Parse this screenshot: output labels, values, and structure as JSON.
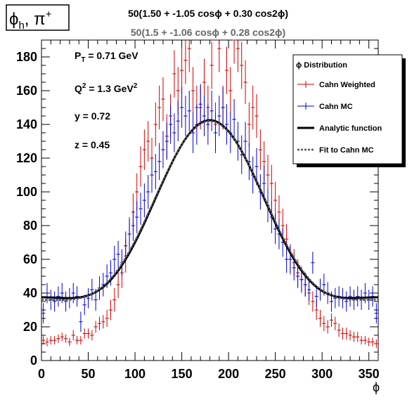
{
  "title_box": {
    "text": "ϕh, π+",
    "main": "ϕ",
    "sub": "h",
    "rest": ", π",
    "sup": "+"
  },
  "formula_1": "50(1.50 + -1.05 cosϕ + 0.30 cos2ϕ)",
  "formula_2": "50(1.5 + -1.06 cosϕ + 0.28 cos2ϕ)",
  "kinematics": [
    {
      "text": "PT = 0.71 GeV",
      "base": "P",
      "sub": "T",
      "sup": "",
      "rest": " = 0.71 GeV"
    },
    {
      "text": "Q2 = 1.3 GeV2",
      "base": "Q",
      "sub": "",
      "sup": "2",
      "rest": " = 1.3 GeV",
      "sup2": "2"
    },
    {
      "text": "y = 0.72",
      "base": "y = 0.72",
      "sub": "",
      "sup": "",
      "rest": ""
    },
    {
      "text": "z = 0.45",
      "base": "z = 0.45",
      "sub": "",
      "sup": "",
      "rest": ""
    }
  ],
  "legend": {
    "header": "ϕ Distribution",
    "entries": [
      {
        "label": "Cahn Weighted",
        "color": "#cc0000",
        "style": "errorbar"
      },
      {
        "label": "Cahn MC",
        "color": "#0000cc",
        "style": "errorbar"
      },
      {
        "label": "Analytic function",
        "color": "#000000",
        "style": "thick-line"
      },
      {
        "label": "Fit to Cahn MC",
        "color": "#555555",
        "style": "dashed-line"
      }
    ]
  },
  "chart_data": {
    "type": "line",
    "xlabel": "ϕ",
    "ylabel": "",
    "xlim": [
      0,
      360
    ],
    "ylim": [
      0,
      190
    ],
    "x_ticks": [
      0,
      50,
      100,
      150,
      200,
      250,
      300,
      350
    ],
    "y_ticks": [
      0,
      20,
      40,
      60,
      80,
      100,
      120,
      140,
      160,
      180
    ],
    "bin_width": 4,
    "series": [
      {
        "name": "Cahn Weighted",
        "color": "#cc0000",
        "x": [
          2,
          6,
          10,
          14,
          18,
          22,
          26,
          30,
          34,
          38,
          42,
          46,
          50,
          54,
          58,
          62,
          66,
          70,
          74,
          78,
          82,
          86,
          90,
          94,
          98,
          102,
          106,
          110,
          114,
          118,
          122,
          126,
          130,
          134,
          138,
          142,
          146,
          150,
          154,
          158,
          162,
          166,
          170,
          174,
          178,
          182,
          186,
          190,
          194,
          198,
          202,
          206,
          210,
          214,
          218,
          222,
          226,
          230,
          234,
          238,
          242,
          246,
          250,
          254,
          258,
          262,
          266,
          270,
          274,
          278,
          282,
          286,
          290,
          294,
          298,
          302,
          306,
          310,
          314,
          318,
          322,
          326,
          330,
          334,
          338,
          342,
          346,
          350,
          354,
          358
        ],
        "y": [
          12,
          11,
          12,
          12,
          13,
          14,
          13,
          11,
          15,
          12,
          12,
          16,
          16,
          15,
          20,
          22,
          23,
          25,
          30,
          36,
          45,
          52,
          62,
          75,
          88,
          100,
          115,
          125,
          130,
          120,
          140,
          150,
          155,
          133,
          145,
          170,
          160,
          172,
          178,
          185,
          160,
          150,
          150,
          165,
          150,
          175,
          140,
          185,
          150,
          172,
          160,
          190,
          185,
          175,
          165,
          140,
          150,
          145,
          125,
          118,
          110,
          105,
          95,
          88,
          80,
          72,
          60,
          58,
          52,
          48,
          45,
          40,
          35,
          30,
          25,
          22,
          20,
          24,
          22,
          18,
          16,
          16,
          15,
          14,
          14,
          12,
          12,
          11,
          11,
          10
        ],
        "yerr": [
          2.5,
          2.5,
          2.5,
          2.5,
          2.5,
          2.5,
          2.5,
          2.5,
          3,
          2.5,
          2.5,
          3,
          3,
          3,
          3.5,
          4,
          4,
          5,
          6,
          7,
          8,
          9,
          10,
          10,
          11,
          11,
          12,
          12,
          12,
          12,
          13,
          13,
          13,
          13,
          13,
          14,
          14,
          14,
          14,
          14,
          14,
          13,
          13,
          14,
          13,
          14,
          13,
          14,
          13,
          14,
          14,
          14,
          14,
          14,
          13,
          13,
          13,
          13,
          12,
          12,
          12,
          11,
          11,
          10,
          10,
          9,
          9,
          8,
          8,
          8,
          7,
          7,
          6,
          6,
          5,
          4.5,
          4,
          4,
          4,
          4,
          3.5,
          3.5,
          3,
          3,
          3,
          2.5,
          2.5,
          2.5,
          2.5,
          2.5
        ]
      },
      {
        "name": "Cahn MC",
        "color": "#0000cc",
        "x": [
          2,
          6,
          10,
          14,
          18,
          22,
          26,
          30,
          34,
          38,
          42,
          46,
          50,
          54,
          58,
          62,
          66,
          70,
          74,
          78,
          82,
          86,
          90,
          94,
          98,
          102,
          106,
          110,
          114,
          118,
          122,
          126,
          130,
          134,
          138,
          142,
          146,
          150,
          154,
          158,
          162,
          166,
          170,
          174,
          178,
          182,
          186,
          190,
          194,
          198,
          202,
          206,
          210,
          214,
          218,
          222,
          226,
          230,
          234,
          238,
          242,
          246,
          250,
          254,
          258,
          262,
          266,
          270,
          274,
          278,
          282,
          286,
          290,
          294,
          298,
          302,
          306,
          310,
          314,
          318,
          322,
          326,
          330,
          334,
          338,
          342,
          346,
          350,
          354,
          358
        ],
        "y": [
          28,
          40,
          36,
          35,
          38,
          40,
          35,
          37,
          40,
          38,
          23,
          33,
          37,
          42,
          36,
          43,
          45,
          50,
          52,
          60,
          63,
          58,
          68,
          75,
          80,
          85,
          90,
          95,
          100,
          110,
          112,
          118,
          125,
          130,
          140,
          135,
          142,
          150,
          145,
          148,
          135,
          140,
          152,
          145,
          140,
          148,
          135,
          145,
          150,
          140,
          135,
          143,
          130,
          122,
          130,
          118,
          110,
          115,
          100,
          105,
          92,
          85,
          78,
          75,
          70,
          60,
          60,
          55,
          50,
          48,
          45,
          42,
          58,
          38,
          42,
          45,
          40,
          35,
          37,
          38,
          37,
          35,
          38,
          36,
          38,
          36,
          40,
          36,
          38,
          28
        ],
        "yerr": [
          6,
          6,
          6,
          6,
          6,
          6,
          6,
          6,
          6,
          6,
          6,
          6,
          6,
          6.5,
          6.5,
          7,
          7,
          7,
          7.5,
          8,
          8,
          8,
          8.5,
          9,
          9,
          9.5,
          9.5,
          10,
          10,
          10.5,
          10.5,
          11,
          11,
          11,
          11.5,
          11.5,
          12,
          12,
          12,
          12,
          12,
          12,
          12,
          12,
          12,
          12,
          12,
          12,
          12,
          12,
          12,
          12,
          11.5,
          11.5,
          11.5,
          11,
          11,
          11,
          10.5,
          10.5,
          10,
          9.5,
          9,
          9,
          8.5,
          8,
          8,
          7.5,
          7,
          7,
          7,
          6.5,
          6.5,
          6.5,
          6.5,
          6.5,
          6.5,
          6,
          6,
          6,
          6,
          6,
          6,
          6,
          6,
          6,
          6,
          6,
          6,
          6
        ]
      },
      {
        "name": "Analytic function",
        "color": "#000000",
        "formula": {
          "a": 1.5,
          "b": -1.05,
          "c": 0.3,
          "scale": 50
        }
      },
      {
        "name": "Fit to Cahn MC",
        "color": "#555555",
        "formula": {
          "a": 1.5,
          "b": -1.06,
          "c": 0.28,
          "scale": 50
        }
      }
    ]
  }
}
